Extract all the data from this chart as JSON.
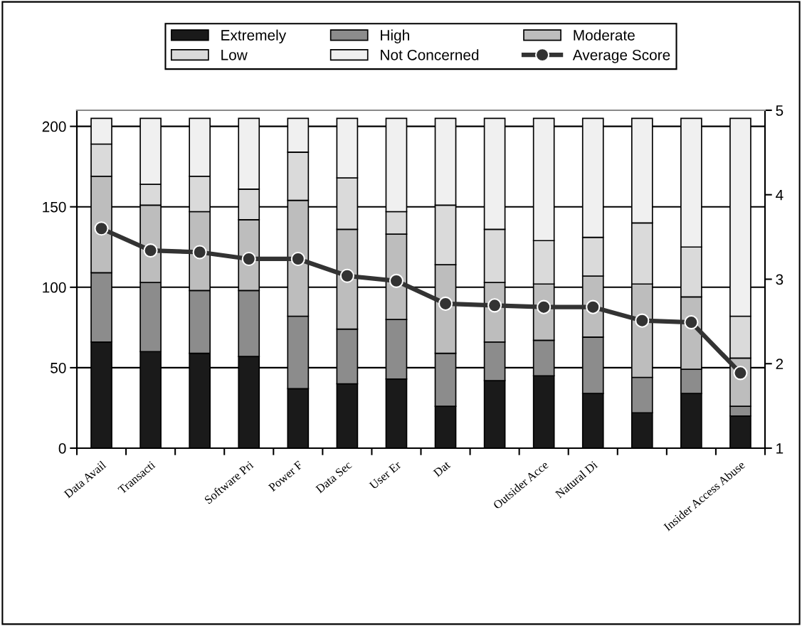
{
  "chart_data": {
    "type": "bar",
    "stacked": true,
    "categories": [
      "Data Avail",
      "Transacti",
      null,
      "Software Pri",
      "Power F",
      "Data Sec",
      "User Er",
      "Dat",
      null,
      "Outsider Acce",
      "Natural Di",
      null,
      null,
      "Insider Access Abuse"
    ],
    "series": [
      {
        "name": "Extremely",
        "color": "#1a1a1a",
        "values": [
          66,
          60,
          59,
          57,
          37,
          40,
          43,
          26,
          42,
          45,
          34,
          22,
          34,
          20
        ]
      },
      {
        "name": "High",
        "color": "#8c8c8c",
        "values": [
          43,
          43,
          39,
          41,
          45,
          34,
          37,
          33,
          24,
          22,
          35,
          22,
          15,
          6
        ]
      },
      {
        "name": "Moderate",
        "color": "#bdbdbd",
        "values": [
          60,
          48,
          49,
          44,
          72,
          62,
          53,
          55,
          37,
          35,
          38,
          58,
          45,
          30
        ]
      },
      {
        "name": "Low",
        "color": "#dadada",
        "values": [
          20,
          13,
          22,
          19,
          30,
          32,
          14,
          37,
          33,
          27,
          24,
          38,
          31,
          26
        ]
      },
      {
        "name": "Not Concerned",
        "color": "#f0f0f0",
        "values": [
          16,
          41,
          36,
          44,
          21,
          37,
          58,
          54,
          69,
          76,
          74,
          65,
          80,
          123
        ]
      },
      {
        "name": "Average Score",
        "type": "line",
        "axis": "y2",
        "color": "#333333",
        "marker": "circle",
        "values": [
          3.6,
          3.34,
          3.32,
          3.24,
          3.24,
          3.04,
          2.98,
          2.71,
          2.69,
          2.67,
          2.67,
          2.51,
          2.49,
          1.89
        ]
      }
    ],
    "ylim": [
      0,
      210
    ],
    "yticks": [
      0,
      50,
      100,
      150,
      200
    ],
    "y2lim": [
      1,
      5
    ],
    "y2ticks": [
      1,
      2,
      3,
      4,
      5
    ],
    "grid": "y",
    "legend": "top"
  }
}
